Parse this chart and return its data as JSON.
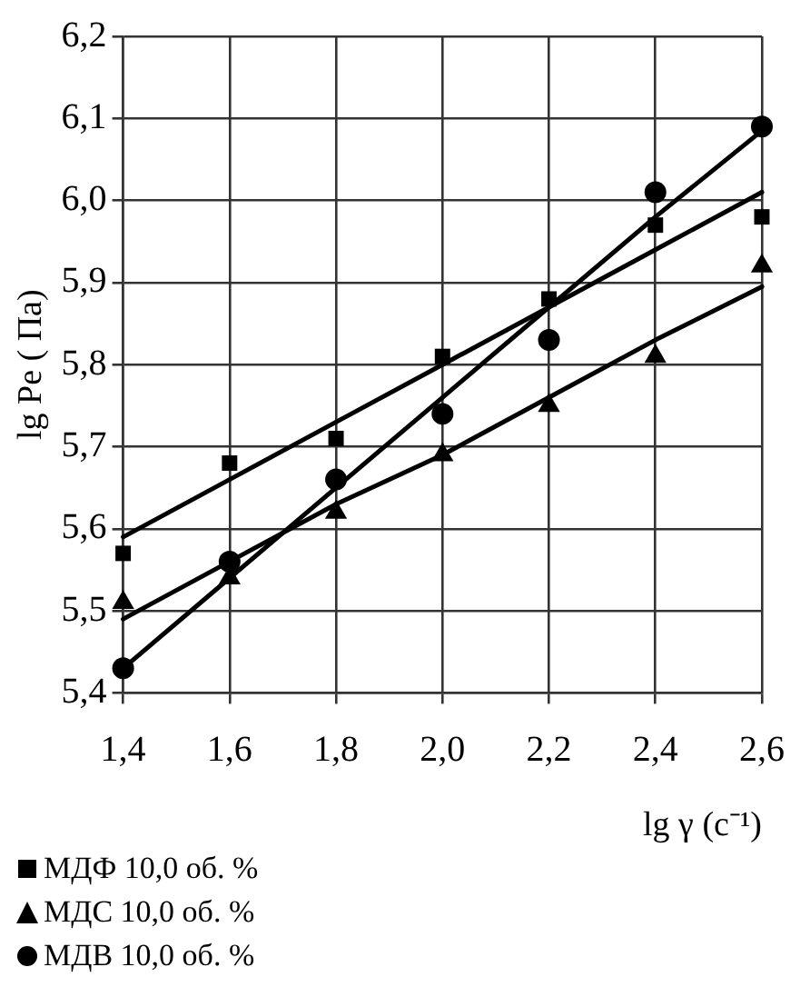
{
  "chart_data": {
    "type": "scatter",
    "xlabel": "lg γ (c⁻¹)",
    "ylabel": "lg Pe ( Па)",
    "xlim": [
      1.4,
      2.6
    ],
    "xticks": [
      {
        "value": 1.4,
        "label": "1,4"
      },
      {
        "value": 1.6,
        "label": "1,6"
      },
      {
        "value": 1.8,
        "label": "1,8"
      },
      {
        "value": 2.0,
        "label": "2,0"
      },
      {
        "value": 2.2,
        "label": "2,2"
      },
      {
        "value": 2.4,
        "label": "2,4"
      },
      {
        "value": 2.6,
        "label": "2,6"
      }
    ],
    "ylim": [
      5.4,
      6.2
    ],
    "yticks": [
      {
        "value": 5.4,
        "label": "5,4"
      },
      {
        "value": 5.5,
        "label": "5,5"
      },
      {
        "value": 5.6,
        "label": "5,6"
      },
      {
        "value": 5.7,
        "label": "5,7"
      },
      {
        "value": 5.8,
        "label": "5,8"
      },
      {
        "value": 5.9,
        "label": "5,9"
      },
      {
        "value": 6.0,
        "label": "6,0"
      },
      {
        "value": 6.1,
        "label": "6,1"
      },
      {
        "value": 6.2,
        "label": "6,2"
      }
    ],
    "grid": true,
    "legend": "bottom left",
    "x": [
      1.4,
      1.6,
      1.8,
      2.0,
      2.2,
      2.4,
      2.6
    ],
    "series": [
      {
        "name": "МДФ 10,0 об. %",
        "color": "#000000",
        "marker": "square",
        "values": [
          5.57,
          5.68,
          5.71,
          5.81,
          5.88,
          5.97,
          5.98
        ]
      },
      {
        "name": "МДС 10,0 об. %",
        "color": "#000000",
        "marker": "triangle",
        "values": [
          5.51,
          5.54,
          5.62,
          5.69,
          5.75,
          5.81,
          5.92
        ]
      },
      {
        "name": "МДВ 10,0 об. %",
        "color": "#000000",
        "marker": "circle",
        "values": [
          5.43,
          5.56,
          5.66,
          5.74,
          5.83,
          6.01,
          6.09
        ]
      },
      {
        "type": "line",
        "color": "#000000",
        "marker": "none",
        "values": [
          5.59,
          5.66,
          5.73,
          5.8,
          5.87,
          5.94,
          6.01
        ]
      },
      {
        "type": "line",
        "color": "#000000",
        "marker": "none",
        "values": [
          5.49,
          5.56,
          5.63,
          5.69,
          5.76,
          5.83,
          5.895
        ]
      },
      {
        "type": "line",
        "color": "#000000",
        "marker": "none",
        "values": [
          5.43,
          5.54,
          5.65,
          5.76,
          5.87,
          5.98,
          6.085
        ]
      }
    ]
  }
}
